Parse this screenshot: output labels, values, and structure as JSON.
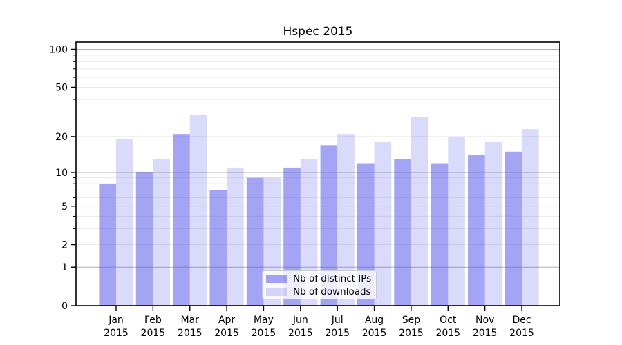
{
  "title": "Hspec 2015",
  "colors": {
    "bar_base": "#5050eb",
    "bar_dark_rgba": "rgba(80,80,235,0.52)",
    "bar_light_rgba": "rgba(80,80,235,0.21)",
    "bar_dark_on_white": "#a4a4f3",
    "bar_light_on_white": "#dbdbf9",
    "grid_major": "#b0b0b0",
    "grid_minor": "#e8e8e8",
    "axis": "#000000",
    "legend_border": "#cccccc"
  },
  "chart_data": {
    "type": "bar",
    "title": "Hspec 2015",
    "categories": [
      "Jan",
      "Feb",
      "Mar",
      "Apr",
      "May",
      "Jun",
      "Jul",
      "Aug",
      "Sep",
      "Oct",
      "Nov",
      "Dec"
    ],
    "year_label": "2015",
    "series": [
      {
        "name": "Nb of distinct IPs",
        "values": [
          8,
          10,
          21,
          7,
          9,
          11,
          17,
          12,
          13,
          12,
          14,
          15
        ]
      },
      {
        "name": "Nb of downloads",
        "values": [
          19,
          13,
          30,
          11,
          9,
          13,
          21,
          18,
          29,
          20,
          18,
          23
        ]
      }
    ],
    "xlabel": "",
    "ylabel": "",
    "yscale": "log1p",
    "ylim": [
      0,
      114
    ],
    "yticks": [
      0,
      1,
      2,
      5,
      10,
      20,
      50,
      100
    ],
    "yticks_minor": [
      3,
      4,
      6,
      7,
      8,
      9,
      30,
      40,
      60,
      70,
      80,
      90
    ],
    "gridlines_dark": [
      1,
      10,
      100
    ],
    "gridlines_light": [
      2,
      3,
      4,
      5,
      6,
      7,
      8,
      9,
      20,
      30,
      40,
      50,
      60,
      70,
      80,
      90
    ],
    "grid": true,
    "legend_position": "lower center"
  }
}
